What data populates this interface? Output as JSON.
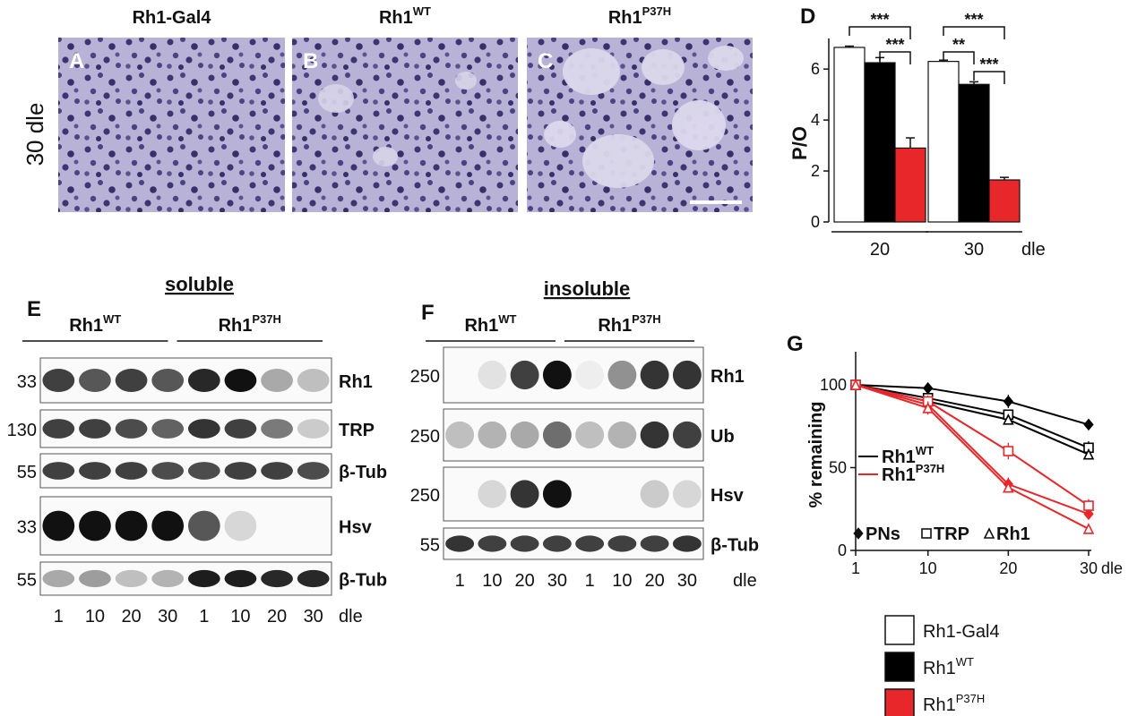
{
  "micrographs": {
    "row_label": "30 dle",
    "panels": [
      {
        "letter": "A",
        "title": "Rh1-Gal4"
      },
      {
        "letter": "B",
        "title": "Rh1",
        "title_sup": "WT"
      },
      {
        "letter": "C",
        "title": "Rh1",
        "title_sup": "P37H"
      }
    ]
  },
  "chart_data": [
    {
      "type": "bar",
      "letter": "D",
      "y_label": "P/O",
      "categories": [
        "20",
        "30"
      ],
      "x_unit": "dle",
      "series": [
        {
          "name": "Rh1-Gal4",
          "color": "#ffffff",
          "values": [
            6.85,
            6.3
          ],
          "errors": [
            0.05,
            0.05
          ]
        },
        {
          "name": "Rh1",
          "name_sup": "WT",
          "color": "#000000",
          "values": [
            6.25,
            5.4
          ],
          "errors": [
            0.2,
            0.1
          ]
        },
        {
          "name": "Rh1",
          "name_sup": "P37H",
          "color": "#e8272a",
          "values": [
            2.9,
            1.65
          ],
          "errors": [
            0.4,
            0.1
          ]
        }
      ],
      "ylim": [
        0,
        7.2
      ],
      "yticks": [
        0,
        2,
        4,
        6
      ],
      "significance": [
        [
          "***",
          "***"
        ],
        [
          "***",
          "**",
          "***"
        ]
      ]
    },
    {
      "type": "line",
      "letter": "G",
      "y_label": "% remaining",
      "x": [
        1,
        10,
        20,
        30
      ],
      "x_unit": "dle",
      "xlim": [
        1,
        30
      ],
      "xticks": [
        1,
        10,
        20,
        30
      ],
      "ylim": [
        0,
        120
      ],
      "yticks": [
        0,
        50,
        100
      ],
      "series": [
        {
          "name": "Rh1",
          "name_sup": "WT",
          "color": "#000000",
          "groups": [
            {
              "name": "PNs",
              "marker": "diamond",
              "values": [
                100,
                98,
                90,
                76
              ],
              "errors": [
                0,
                3,
                4,
                1
              ]
            },
            {
              "name": "TRP",
              "marker": "square",
              "values": [
                100,
                92,
                82,
                62
              ],
              "errors": [
                0,
                3,
                3,
                4
              ]
            },
            {
              "name": "Rh1",
              "marker": "triangle",
              "values": [
                100,
                90,
                79,
                58
              ],
              "errors": [
                0,
                3,
                3,
                3
              ]
            }
          ]
        },
        {
          "name": "Rh1",
          "name_sup": "P37H",
          "color": "#e8272a",
          "groups": [
            {
              "name": "PNs",
              "marker": "diamond",
              "values": [
                100,
                88,
                40,
                22
              ],
              "errors": [
                0,
                3,
                4,
                3
              ]
            },
            {
              "name": "TRP",
              "marker": "square",
              "values": [
                100,
                90,
                60,
                27
              ],
              "errors": [
                0,
                3,
                5,
                4
              ]
            },
            {
              "name": "Rh1",
              "marker": "triangle",
              "values": [
                100,
                86,
                38,
                13
              ],
              "errors": [
                0,
                4,
                3,
                2
              ]
            }
          ]
        }
      ]
    }
  ],
  "blots": [
    {
      "letter": "E",
      "title": "soluble",
      "groups": [
        {
          "name": "Rh1",
          "name_sup": "WT"
        },
        {
          "name": "Rh1",
          "name_sup": "P37H"
        }
      ],
      "lanes": [
        "1",
        "10",
        "20",
        "30",
        "1",
        "10",
        "20",
        "30"
      ],
      "lane_unit": "dle",
      "rows": [
        {
          "mw": "33",
          "label": "Rh1",
          "bands": [
            0.8,
            0.7,
            0.8,
            0.7,
            0.9,
            1,
            0.35,
            0.25
          ]
        },
        {
          "mw": "130",
          "label": "TRP",
          "bands": [
            0.8,
            0.8,
            0.75,
            0.65,
            0.85,
            0.8,
            0.55,
            0.2
          ]
        },
        {
          "mw": "55",
          "label": "β-Tub",
          "bands": [
            0.8,
            0.8,
            0.8,
            0.75,
            0.75,
            0.8,
            0.8,
            0.75
          ]
        },
        {
          "mw": "33",
          "label": "Hsv",
          "bands": [
            1,
            1,
            1,
            1,
            0.7,
            0.15,
            0,
            0
          ]
        },
        {
          "mw": "55",
          "label": "β-Tub",
          "bands": [
            0.35,
            0.4,
            0.25,
            0.3,
            0.95,
            0.95,
            0.9,
            0.9
          ]
        }
      ]
    },
    {
      "letter": "F",
      "title": "insoluble",
      "groups": [
        {
          "name": "Rh1",
          "name_sup": "WT"
        },
        {
          "name": "Rh1",
          "name_sup": "P37H"
        }
      ],
      "lanes": [
        "1",
        "10",
        "20",
        "30",
        "1",
        "10",
        "20",
        "30"
      ],
      "lane_unit": "dle",
      "rows": [
        {
          "mw": "250",
          "label": "Rh1",
          "bands": [
            0,
            0.1,
            0.8,
            1,
            0.05,
            0.45,
            0.85,
            0.85
          ]
        },
        {
          "mw": "250",
          "label": "Ub",
          "bands": [
            0.25,
            0.3,
            0.35,
            0.6,
            0.25,
            0.3,
            0.85,
            0.8
          ]
        },
        {
          "mw": "250",
          "label": "Hsv",
          "bands": [
            0,
            0.15,
            0.85,
            1,
            0,
            0,
            0.2,
            0.15
          ]
        },
        {
          "mw": "55",
          "label": "β-Tub",
          "bands": [
            0.85,
            0.8,
            0.8,
            0.8,
            0.8,
            0.8,
            0.8,
            0.85
          ]
        }
      ]
    }
  ]
}
